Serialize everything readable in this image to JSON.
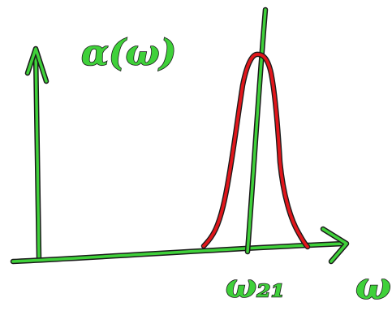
{
  "colors": {
    "axes": "#3fd13a",
    "curve": "#e0161b",
    "outline": "#1a1a1a",
    "background": "#ffffff"
  },
  "labels": {
    "y_axis": "α(ω)",
    "x_axis": "ω",
    "peak_marker": "ω₂₁"
  }
}
